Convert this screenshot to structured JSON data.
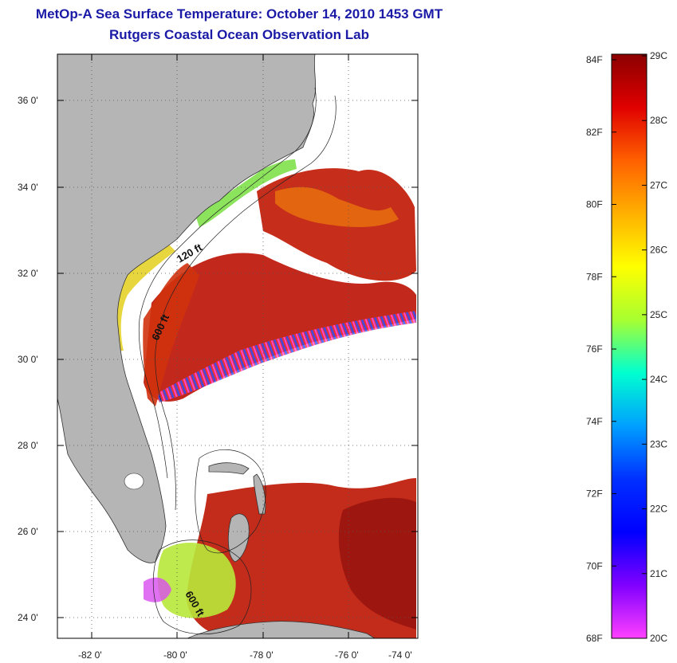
{
  "title": {
    "line1": "MetOp-A Sea Surface Temperature:  October 14, 2010 1453 GMT",
    "line2": "Rutgers Coastal Ocean Observation Lab"
  },
  "map": {
    "lat_labels": [
      "36 0'",
      "34 0'",
      "32 0'",
      "30 0'",
      "28 0'",
      "26 0'",
      "24 0'"
    ],
    "lon_labels": [
      "-82 0'",
      "-80 0'",
      "-78 0'",
      "-76 0'",
      "-74 0'"
    ],
    "contour_labels": [
      "120 ft",
      "600 ft",
      "600 ft"
    ],
    "colors": {
      "land": "#b5b5b5",
      "no_data": "#ffffff",
      "warm": "#c81d0e"
    }
  },
  "colorbar": {
    "fahrenheit_labels": [
      "84F",
      "82F",
      "80F",
      "78F",
      "76F",
      "74F",
      "72F",
      "70F",
      "68F"
    ],
    "celsius_labels": [
      "29C",
      "28C",
      "27C",
      "26C",
      "25C",
      "24C",
      "23C",
      "22C",
      "21C",
      "20C"
    ],
    "stops": [
      "#8b0000",
      "#e00000",
      "#ff6000",
      "#ffb000",
      "#ffff00",
      "#a8ff30",
      "#00ffd0",
      "#00a0ff",
      "#0030ff",
      "#0000ff",
      "#8000ff",
      "#ff40ff"
    ]
  }
}
